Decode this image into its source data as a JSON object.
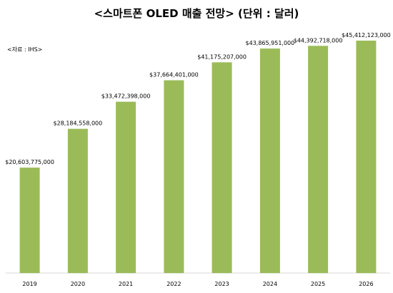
{
  "title": "<스마트폰 OLED 매출 전망> (단위 : 달러)",
  "source": "<자료 : IHS>",
  "colors": {
    "bar": "#9BBB59",
    "axis": "#000000"
  },
  "chart_data": {
    "type": "bar",
    "title": "<스마트폰 OLED 매출 전망> (단위 : 달러)",
    "categories": [
      "2019",
      "2020",
      "2021",
      "2022",
      "2023",
      "2024",
      "2025",
      "2026"
    ],
    "values": [
      20603775000,
      28184558000,
      33472398000,
      37664401000,
      41175207000,
      43865951000,
      44392718000,
      45412123000
    ],
    "data_labels": [
      "$20,603,775,000",
      "$28,184,558,000",
      "$33,472,398,000",
      "$37,664,401,000",
      "$41,175,207,000",
      "$43,865,951,000",
      "$44,392,718,000",
      "$45,412,123,000"
    ],
    "xlabel": "",
    "ylabel": "",
    "ylim": [
      0,
      50000000000
    ],
    "grid": false,
    "legend": "none"
  }
}
